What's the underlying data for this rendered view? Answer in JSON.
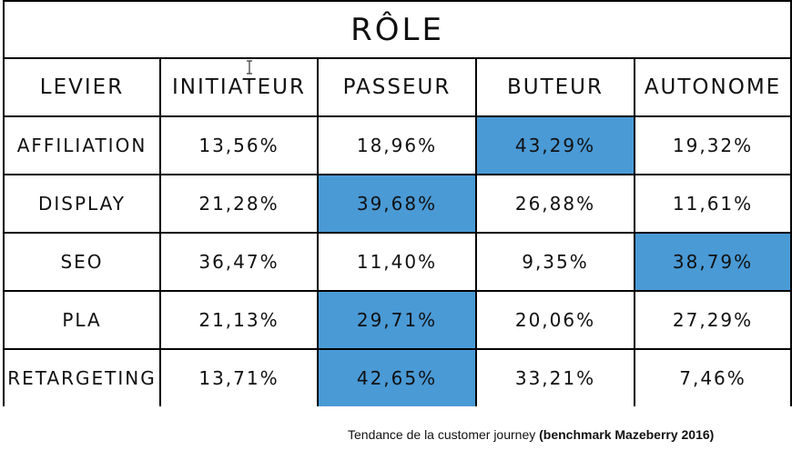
{
  "chart_data": {
    "type": "table",
    "title": "RÔLE",
    "columns": [
      "LEVIER",
      "INITIATEUR",
      "PASSEUR",
      "BUTEUR",
      "AUTONOME"
    ],
    "rows": [
      {
        "label": "AFFILIATION",
        "values": [
          "13,56%",
          "18,96%",
          "43,29%",
          "19,32%"
        ],
        "highlight": 2
      },
      {
        "label": "DISPLAY",
        "values": [
          "21,28%",
          "39,68%",
          "26,88%",
          "11,61%"
        ],
        "highlight": 1
      },
      {
        "label": "SEO",
        "values": [
          "36,47%",
          "11,40%",
          "9,35%",
          "38,79%"
        ],
        "highlight": 3
      },
      {
        "label": "PLA",
        "values": [
          "21,13%",
          "29,71%",
          "20,06%",
          "27,29%"
        ],
        "highlight": 1
      },
      {
        "label": "RETARGETING",
        "values": [
          "13,71%",
          "42,65%",
          "33,21%",
          "7,46%"
        ],
        "highlight": 1
      }
    ],
    "highlight_color": "#4a9ad6"
  },
  "caption": {
    "text": "Tendance de la customer journey ",
    "bold": "(benchmark Mazeberry 2016)"
  }
}
